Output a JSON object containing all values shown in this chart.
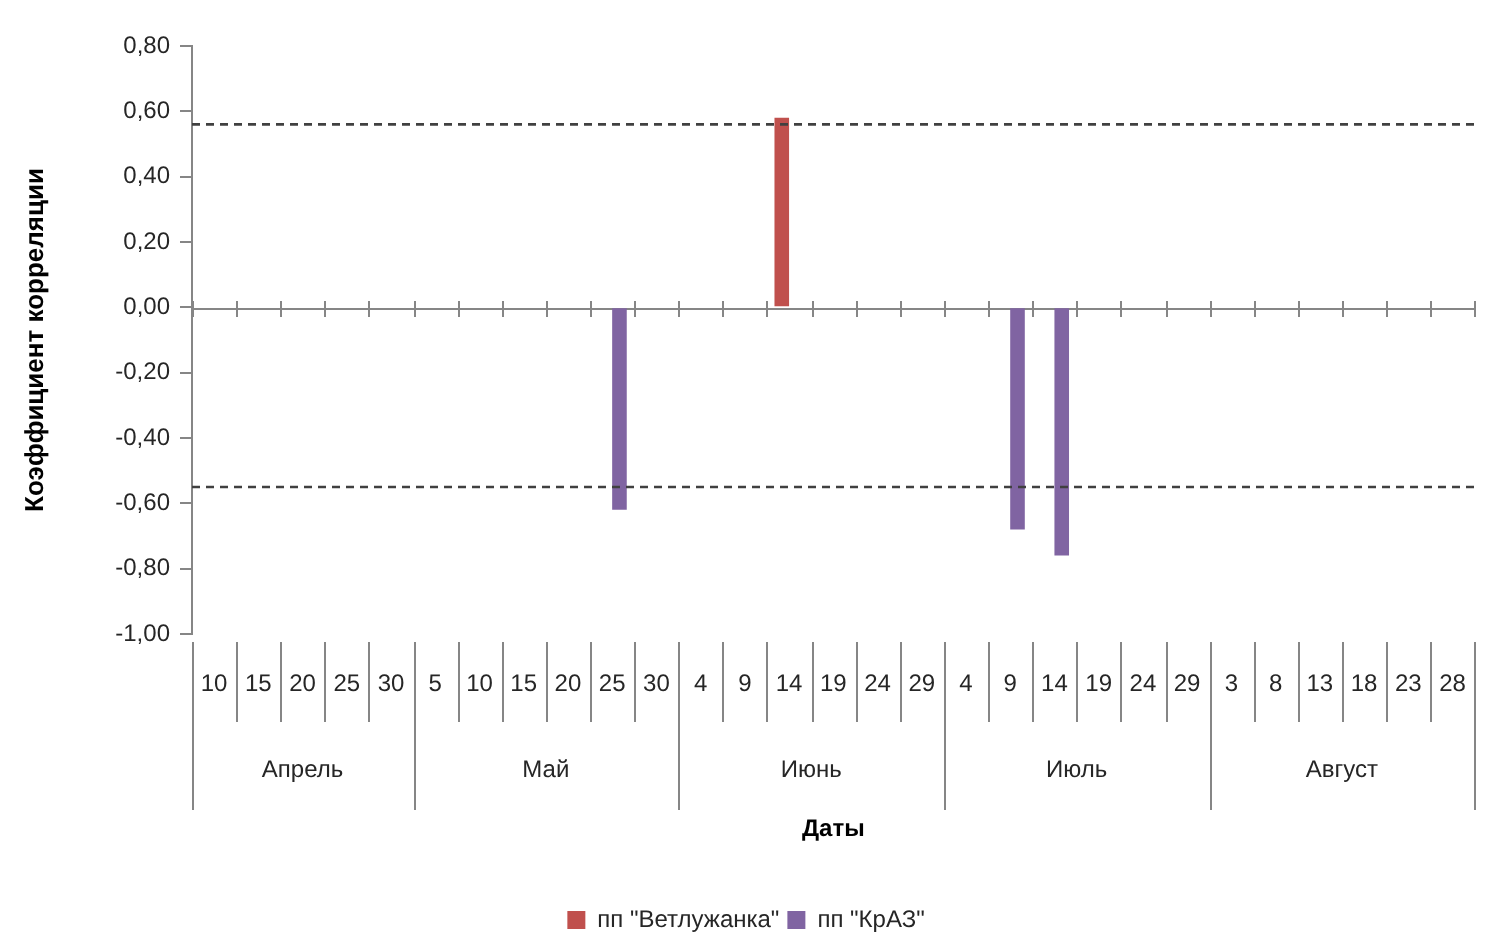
{
  "chart_data": {
    "type": "bar",
    "xlabel": "Даты",
    "ylabel": "Коэффициент корреляции",
    "categories": [
      "10",
      "15",
      "20",
      "25",
      "30",
      "5",
      "10",
      "15",
      "20",
      "25",
      "30",
      "4",
      "9",
      "14",
      "19",
      "24",
      "29",
      "4",
      "9",
      "14",
      "19",
      "24",
      "29",
      "3",
      "8",
      "13",
      "18",
      "23",
      "28"
    ],
    "series": [
      {
        "name": "пп \"Ветлужанка\"",
        "color": "#c0504d",
        "values": [
          null,
          null,
          null,
          null,
          null,
          null,
          null,
          null,
          null,
          null,
          null,
          null,
          null,
          0.58,
          null,
          null,
          null,
          null,
          null,
          null,
          null,
          null,
          null,
          null,
          null,
          null,
          null,
          null,
          null
        ]
      },
      {
        "name": "пп \"КрАЗ\"",
        "color": "#8064a2",
        "values": [
          null,
          null,
          null,
          null,
          null,
          null,
          null,
          null,
          null,
          -0.62,
          null,
          null,
          null,
          null,
          null,
          null,
          null,
          null,
          -0.68,
          -0.76,
          null,
          null,
          null,
          null,
          null,
          null,
          null,
          null,
          null
        ]
      }
    ],
    "ylim": [
      -1,
      0.8
    ],
    "yticks": [
      {
        "value": -1,
        "label": "-1,00"
      },
      {
        "value": -0.8,
        "label": "-0,80"
      },
      {
        "value": -0.6,
        "label": "-0,60"
      },
      {
        "value": -0.4,
        "label": "-0,40"
      },
      {
        "value": -0.2,
        "label": "-0,20"
      },
      {
        "value": 0,
        "label": "0,00"
      },
      {
        "value": 0.2,
        "label": "0,20"
      },
      {
        "value": 0.4,
        "label": "0,40"
      },
      {
        "value": 0.6,
        "label": "0,60"
      },
      {
        "value": 0.8,
        "label": "0,80"
      }
    ],
    "ref_lines": [
      {
        "axis": "y",
        "value": 0.56,
        "color": "#404040",
        "line_style": "dashed"
      },
      {
        "axis": "y",
        "value": -0.55,
        "color": "#404040",
        "line_style": "dashed"
      }
    ],
    "annotations": [
      "Апрель",
      "Май",
      "Июнь",
      "Июль",
      "Август"
    ],
    "legend": "bottom"
  }
}
